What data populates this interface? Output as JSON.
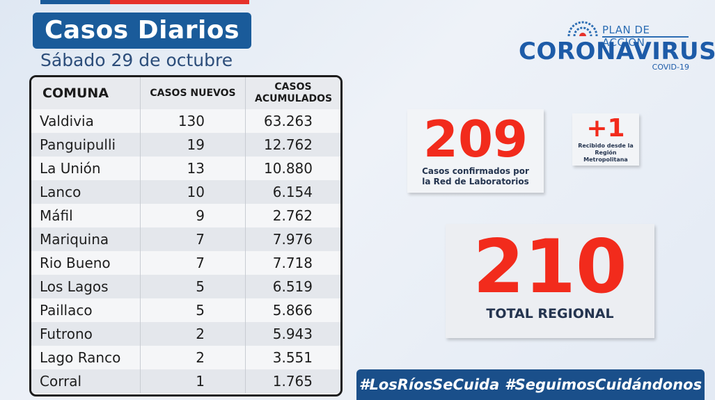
{
  "header": {
    "title": "Casos Diarios",
    "date": "Sábado 29 de octubre"
  },
  "brand": {
    "plan": "PLAN DE ACCIÓN",
    "name": "CORONAVIRUS",
    "sub": "COVID-19"
  },
  "table": {
    "headers": [
      "COMUNA",
      "CASOS NUEVOS",
      "CASOS ACUMULADOS"
    ],
    "rows": [
      {
        "comuna": "Valdivia",
        "nuevos": "130",
        "acumulados": "63.263"
      },
      {
        "comuna": "Panguipulli",
        "nuevos": "19",
        "acumulados": "12.762"
      },
      {
        "comuna": "La Unión",
        "nuevos": "13",
        "acumulados": "10.880"
      },
      {
        "comuna": "Lanco",
        "nuevos": "10",
        "acumulados": "6.154"
      },
      {
        "comuna": "Máfil",
        "nuevos": "9",
        "acumulados": "2.762"
      },
      {
        "comuna": "Mariquina",
        "nuevos": "7",
        "acumulados": "7.976"
      },
      {
        "comuna": "Rio Bueno",
        "nuevos": "7",
        "acumulados": "7.718"
      },
      {
        "comuna": "Los Lagos",
        "nuevos": "5",
        "acumulados": "6.519"
      },
      {
        "comuna": "Paillaco",
        "nuevos": "5",
        "acumulados": "5.866"
      },
      {
        "comuna": "Futrono",
        "nuevos": "2",
        "acumulados": "5.943"
      },
      {
        "comuna": "Lago Ranco",
        "nuevos": "2",
        "acumulados": "3.551"
      },
      {
        "comuna": "Corral",
        "nuevos": "1",
        "acumulados": "1.765"
      }
    ]
  },
  "stats": {
    "lab": {
      "value": "209",
      "label": "Casos confirmados por la Red de Laboratorios"
    },
    "rm": {
      "value": "+1",
      "label": "Recibido desde la Región Metropolitana"
    },
    "total": {
      "value": "210",
      "label": "TOTAL REGIONAL"
    }
  },
  "hashtags": [
    "#LosRíosSeCuida",
    "#SeguimosCuidándonos"
  ],
  "colors": {
    "accent_blue": "#1a5b9a",
    "red": "#f22b1c"
  }
}
